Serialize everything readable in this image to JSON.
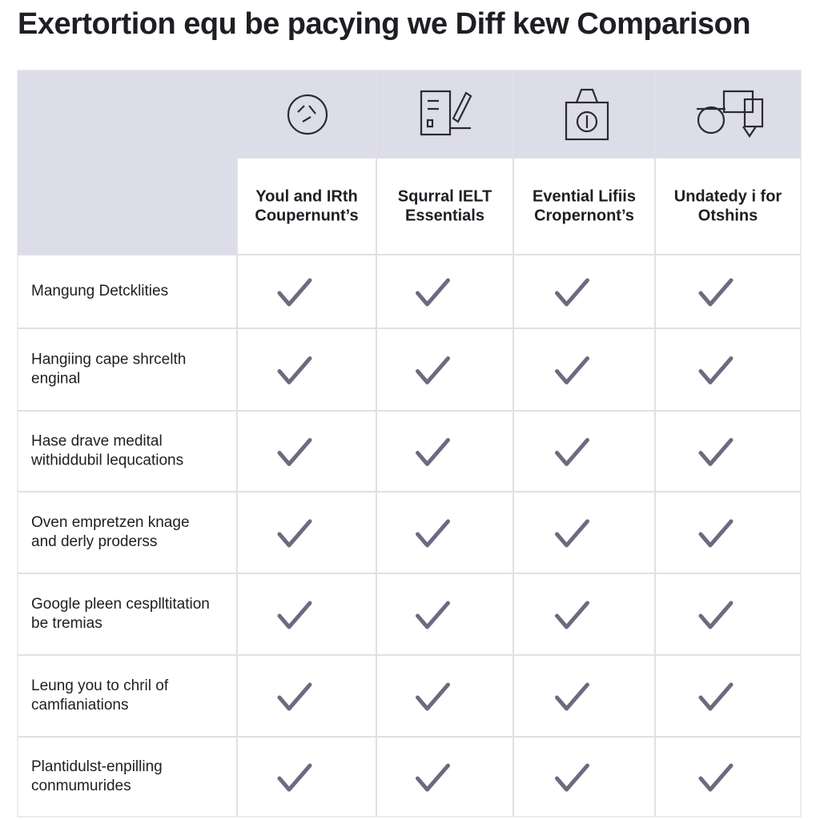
{
  "title": "Exertortion equ be pacying we Diff kew Comparison",
  "columns": [
    {
      "lines": [
        "Youl and IRth",
        "Coupernunt’s"
      ]
    },
    {
      "lines": [
        "Squrral IELT",
        "Essentials"
      ]
    },
    {
      "lines": [
        "Evential Lifiis",
        "Cropernont’s"
      ]
    },
    {
      "lines": [
        "Undatedy i for",
        "Otshins"
      ]
    }
  ],
  "rows": [
    {
      "lines": [
        "Mangung Detcklities"
      ]
    },
    {
      "lines": [
        "Hangiing cape shrcelth",
        "enginal"
      ]
    },
    {
      "lines": [
        "Hase drave medital",
        "withiddubil lequcations"
      ]
    },
    {
      "lines": [
        "Oven empretzen knage",
        "and derly proderss"
      ]
    },
    {
      "lines": [
        "Google pleen cesplltitation",
        "be tremias"
      ]
    },
    {
      "lines": [
        "Leung you to chril of",
        "camfianiations"
      ]
    },
    {
      "lines": [
        "Plantidulst-enpilling",
        "conmumurides"
      ]
    }
  ]
}
